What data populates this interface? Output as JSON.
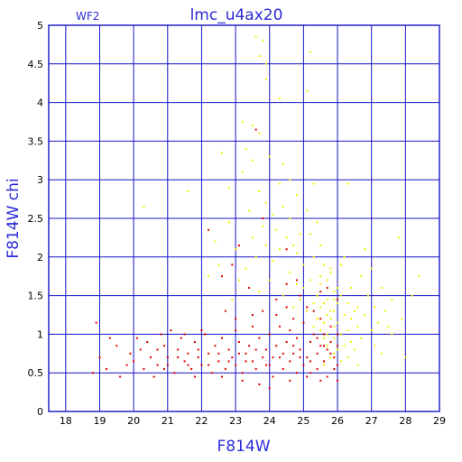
{
  "chart_data": {
    "type": "scatter",
    "title": "lmc_u4ax20",
    "corner_label": "WF2",
    "xlabel": "F814W",
    "ylabel": "F814W  chi",
    "xlim": [
      17.5,
      29
    ],
    "ylim": [
      0,
      5
    ],
    "xticks": [
      "18",
      "19",
      "20",
      "21",
      "22",
      "23",
      "24",
      "25",
      "26",
      "27",
      "28",
      "29"
    ],
    "yticks": [
      "0",
      "0.5",
      "1",
      "1.5",
      "2",
      "2.5",
      "3",
      "3.5",
      "4",
      "4.5",
      "5"
    ],
    "grid": true,
    "colors": {
      "frame": "#1414c8",
      "text": "#2b2bd6",
      "series_red": "#e00000",
      "series_yellow": "#f0f000"
    },
    "series": [
      {
        "color": "#f0f000",
        "points": [
          [
            23.6,
            4.85
          ],
          [
            23.8,
            4.8
          ],
          [
            23.7,
            4.6
          ],
          [
            23.9,
            4.5
          ],
          [
            23.9,
            4.3
          ],
          [
            25.2,
            4.65
          ],
          [
            25.1,
            4.15
          ],
          [
            24.3,
            4.05
          ],
          [
            23.2,
            3.75
          ],
          [
            23.5,
            3.7
          ],
          [
            23.7,
            3.6
          ],
          [
            23.3,
            3.4
          ],
          [
            22.6,
            3.35
          ],
          [
            24.0,
            3.3
          ],
          [
            23.5,
            3.25
          ],
          [
            24.4,
            3.2
          ],
          [
            23.2,
            3.1
          ],
          [
            24.6,
            3.0
          ],
          [
            24.3,
            2.95
          ],
          [
            25.3,
            2.95
          ],
          [
            26.3,
            2.95
          ],
          [
            21.6,
            2.85
          ],
          [
            22.8,
            2.9
          ],
          [
            23.7,
            2.85
          ],
          [
            24.8,
            2.8
          ],
          [
            23.9,
            2.7
          ],
          [
            24.4,
            2.65
          ],
          [
            25.1,
            2.6
          ],
          [
            20.3,
            2.65
          ],
          [
            23.4,
            2.6
          ],
          [
            24.1,
            2.55
          ],
          [
            24.6,
            2.5
          ],
          [
            25.4,
            2.45
          ],
          [
            22.8,
            2.45
          ],
          [
            23.8,
            2.4
          ],
          [
            24.2,
            2.35
          ],
          [
            24.9,
            2.3
          ],
          [
            25.2,
            2.3
          ],
          [
            23.5,
            2.25
          ],
          [
            24.5,
            2.25
          ],
          [
            27.8,
            2.25
          ],
          [
            22.4,
            2.2
          ],
          [
            23.9,
            2.15
          ],
          [
            24.7,
            2.15
          ],
          [
            25.5,
            2.15
          ],
          [
            23.0,
            2.1
          ],
          [
            24.3,
            2.1
          ],
          [
            26.8,
            2.1
          ],
          [
            24.8,
            2.05
          ],
          [
            25.3,
            2.0
          ],
          [
            23.6,
            2.0
          ],
          [
            26.2,
            2.0
          ],
          [
            22.5,
            1.9
          ],
          [
            24.1,
            1.95
          ],
          [
            25.0,
            1.9
          ],
          [
            25.6,
            1.9
          ],
          [
            27.0,
            1.85
          ],
          [
            23.3,
            1.85
          ],
          [
            24.6,
            1.8
          ],
          [
            25.8,
            1.8
          ],
          [
            26.7,
            1.75
          ],
          [
            22.2,
            1.75
          ],
          [
            24.0,
            1.7
          ],
          [
            25.2,
            1.7
          ],
          [
            28.4,
            1.75
          ],
          [
            23.1,
            1.7
          ],
          [
            24.8,
            1.65
          ],
          [
            25.5,
            1.65
          ],
          [
            26.4,
            1.6
          ],
          [
            27.3,
            1.6
          ],
          [
            23.7,
            1.55
          ],
          [
            25.0,
            1.6
          ],
          [
            25.9,
            1.55
          ],
          [
            24.4,
            1.5
          ],
          [
            25.4,
            1.5
          ],
          [
            26.1,
            1.5
          ],
          [
            26.9,
            1.5
          ],
          [
            27.6,
            1.45
          ],
          [
            22.9,
            1.45
          ],
          [
            24.9,
            1.45
          ],
          [
            25.7,
            1.45
          ],
          [
            26.3,
            1.4
          ],
          [
            28.2,
            1.5
          ],
          [
            25.3,
            1.4
          ],
          [
            26.0,
            1.4
          ],
          [
            26.6,
            1.35
          ],
          [
            27.1,
            1.35
          ],
          [
            24.7,
            1.35
          ],
          [
            25.5,
            1.35
          ],
          [
            25.9,
            1.3
          ],
          [
            26.5,
            1.3
          ],
          [
            27.4,
            1.3
          ],
          [
            25.1,
            1.3
          ],
          [
            25.7,
            1.25
          ],
          [
            26.2,
            1.25
          ],
          [
            26.8,
            1.25
          ],
          [
            27.9,
            1.2
          ],
          [
            25.4,
            1.2
          ],
          [
            25.8,
            1.2
          ],
          [
            26.4,
            1.2
          ],
          [
            27.2,
            1.15
          ],
          [
            25.6,
            1.15
          ],
          [
            26.0,
            1.15
          ],
          [
            26.6,
            1.1
          ],
          [
            27.5,
            1.1
          ],
          [
            25.3,
            1.1
          ],
          [
            25.9,
            1.1
          ],
          [
            26.3,
            1.05
          ],
          [
            27.0,
            1.05
          ],
          [
            25.5,
            1.05
          ],
          [
            25.7,
            1.0
          ],
          [
            26.1,
            1.0
          ],
          [
            26.7,
            0.95
          ],
          [
            27.6,
            1.0
          ],
          [
            25.6,
            0.95
          ],
          [
            25.9,
            0.95
          ],
          [
            26.4,
            0.9
          ],
          [
            25.8,
            0.9
          ],
          [
            26.2,
            0.85
          ],
          [
            27.1,
            0.85
          ],
          [
            25.7,
            0.85
          ],
          [
            26.0,
            0.8
          ],
          [
            26.5,
            0.8
          ],
          [
            25.9,
            0.75
          ],
          [
            26.3,
            0.7
          ],
          [
            27.3,
            0.75
          ],
          [
            25.8,
            0.7
          ],
          [
            26.1,
            0.65
          ],
          [
            25.6,
            0.6
          ],
          [
            26.6,
            0.6
          ],
          [
            28.0,
            0.7
          ],
          [
            25.8,
            1.3
          ],
          [
            25.6,
            1.4
          ],
          [
            25.9,
            1.45
          ],
          [
            26.0,
            1.6
          ],
          [
            25.7,
            1.7
          ],
          [
            25.5,
            1.75
          ],
          [
            25.8,
            1.85
          ],
          [
            26.1,
            1.9
          ]
        ]
      },
      {
        "color": "#e00000",
        "points": [
          [
            23.6,
            3.65
          ],
          [
            23.8,
            2.5
          ],
          [
            22.2,
            2.35
          ],
          [
            23.1,
            2.15
          ],
          [
            24.5,
            2.1
          ],
          [
            22.9,
            1.9
          ],
          [
            22.6,
            1.75
          ],
          [
            24.8,
            1.7
          ],
          [
            24.5,
            1.65
          ],
          [
            23.4,
            1.6
          ],
          [
            25.7,
            1.6
          ],
          [
            24.9,
            1.5
          ],
          [
            24.2,
            1.45
          ],
          [
            26.0,
            1.45
          ],
          [
            25.5,
            1.55
          ],
          [
            18.9,
            1.15
          ],
          [
            18.8,
            0.5
          ],
          [
            19.0,
            0.7
          ],
          [
            19.3,
            0.95
          ],
          [
            19.5,
            0.85
          ],
          [
            19.8,
            0.6
          ],
          [
            19.2,
            0.55
          ],
          [
            19.6,
            0.45
          ],
          [
            19.9,
            0.75
          ],
          [
            20.1,
            0.95
          ],
          [
            20.0,
            0.65
          ],
          [
            20.3,
            0.55
          ],
          [
            20.2,
            0.8
          ],
          [
            20.5,
            0.7
          ],
          [
            20.4,
            0.9
          ],
          [
            20.6,
            0.45
          ],
          [
            20.7,
            0.6
          ],
          [
            20.9,
            0.85
          ],
          [
            21.0,
            0.7
          ],
          [
            21.1,
            1.05
          ],
          [
            20.9,
            0.55
          ],
          [
            21.3,
            0.8
          ],
          [
            21.2,
            0.5
          ],
          [
            21.4,
            0.95
          ],
          [
            21.5,
            0.65
          ],
          [
            21.6,
            0.75
          ],
          [
            21.7,
            0.55
          ],
          [
            21.8,
            0.9
          ],
          [
            21.9,
            0.7
          ],
          [
            22.0,
            0.6
          ],
          [
            22.1,
            1.0
          ],
          [
            22.2,
            0.75
          ],
          [
            22.3,
            0.5
          ],
          [
            22.4,
            0.85
          ],
          [
            22.5,
            0.65
          ],
          [
            22.6,
            0.95
          ],
          [
            22.7,
            0.55
          ],
          [
            22.8,
            0.8
          ],
          [
            22.9,
            0.7
          ],
          [
            23.0,
            0.6
          ],
          [
            23.0,
            1.05
          ],
          [
            23.1,
            0.9
          ],
          [
            23.2,
            0.5
          ],
          [
            23.3,
            0.75
          ],
          [
            23.4,
            0.85
          ],
          [
            23.5,
            0.65
          ],
          [
            23.5,
            1.1
          ],
          [
            23.6,
            0.55
          ],
          [
            23.7,
            0.95
          ],
          [
            23.8,
            0.7
          ],
          [
            23.9,
            0.8
          ],
          [
            24.0,
            0.6
          ],
          [
            24.0,
            1.0
          ],
          [
            24.1,
            0.45
          ],
          [
            24.2,
            0.85
          ],
          [
            24.3,
            0.7
          ],
          [
            24.3,
            1.1
          ],
          [
            24.4,
            0.55
          ],
          [
            24.5,
            0.9
          ],
          [
            24.6,
            0.65
          ],
          [
            24.6,
            1.05
          ],
          [
            24.7,
            0.75
          ],
          [
            24.8,
            0.5
          ],
          [
            24.8,
            0.95
          ],
          [
            24.9,
            0.8
          ],
          [
            25.0,
            0.6
          ],
          [
            25.0,
            1.15
          ],
          [
            25.1,
            0.7
          ],
          [
            25.2,
            0.9
          ],
          [
            25.2,
            0.5
          ],
          [
            25.3,
            1.0
          ],
          [
            25.4,
            0.75
          ],
          [
            25.4,
            0.55
          ],
          [
            25.5,
            0.85
          ],
          [
            25.5,
            1.2
          ],
          [
            25.6,
            0.65
          ],
          [
            25.6,
            1.0
          ],
          [
            25.7,
            0.8
          ],
          [
            25.7,
            0.45
          ],
          [
            25.8,
            0.9
          ],
          [
            25.8,
            1.1
          ],
          [
            25.9,
            0.7
          ],
          [
            25.9,
            0.55
          ],
          [
            26.0,
            0.85
          ],
          [
            26.0,
            1.0
          ],
          [
            26.0,
            0.6
          ],
          [
            25.8,
            0.75
          ],
          [
            25.6,
            0.85
          ],
          [
            25.4,
            0.95
          ],
          [
            25.2,
            0.65
          ],
          [
            24.9,
            0.7
          ],
          [
            24.7,
            0.85
          ],
          [
            24.4,
            0.75
          ],
          [
            24.1,
            0.7
          ],
          [
            23.9,
            0.6
          ],
          [
            23.6,
            0.8
          ],
          [
            23.3,
            0.65
          ],
          [
            23.1,
            0.75
          ],
          [
            22.8,
            0.65
          ],
          [
            22.5,
            0.75
          ],
          [
            22.2,
            0.6
          ],
          [
            21.9,
            0.8
          ],
          [
            21.6,
            0.6
          ],
          [
            21.3,
            0.7
          ],
          [
            21.0,
            0.6
          ],
          [
            20.7,
            0.8
          ],
          [
            24.0,
            0.3
          ],
          [
            23.2,
            0.4
          ],
          [
            24.6,
            0.4
          ],
          [
            25.1,
            0.45
          ],
          [
            22.6,
            0.45
          ],
          [
            21.8,
            0.45
          ],
          [
            23.7,
            0.35
          ],
          [
            25.5,
            0.4
          ],
          [
            26.0,
            0.4
          ],
          [
            22.0,
            1.05
          ],
          [
            21.5,
            1.0
          ],
          [
            20.8,
            1.0
          ],
          [
            24.7,
            1.2
          ],
          [
            24.2,
            1.25
          ],
          [
            23.8,
            1.3
          ],
          [
            25.3,
            1.3
          ],
          [
            23.0,
            1.2
          ],
          [
            24.5,
            1.35
          ],
          [
            25.1,
            1.35
          ],
          [
            23.5,
            1.25
          ],
          [
            22.7,
            1.3
          ]
        ]
      }
    ]
  }
}
